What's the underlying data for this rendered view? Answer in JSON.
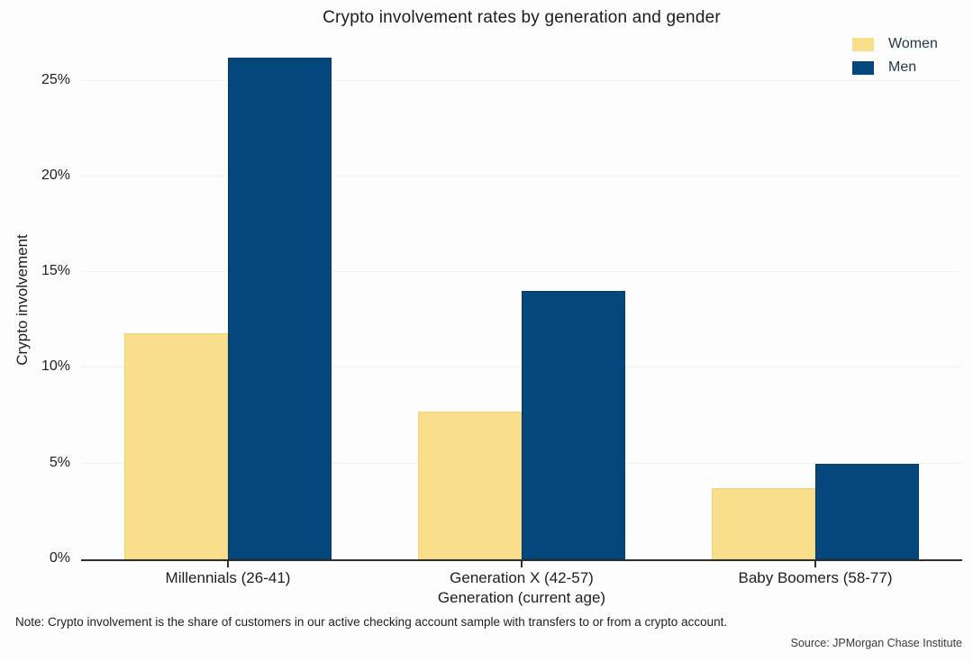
{
  "chart_data": {
    "type": "bar",
    "title": "Crypto involvement rates by generation and gender",
    "categories": [
      "Millennials (26-41)",
      "Generation X (42-57)",
      "Baby Boomers (58-77)"
    ],
    "series": [
      {
        "name": "Women",
        "values": [
          11.8,
          7.7,
          3.7
        ],
        "color": "#F9DF8B",
        "edge_color": "#eed27c"
      },
      {
        "name": "Men",
        "values": [
          26.2,
          14.0,
          5.0
        ],
        "color": "#03477D",
        "edge_color": "#0a3a63"
      }
    ],
    "xlabel": "Generation (current age)",
    "ylabel": "Crypto involvement",
    "yticks": [
      0,
      5,
      10,
      15,
      20,
      25
    ],
    "ytick_suffix": "%",
    "ylim": [
      0,
      27.1
    ],
    "grid": true,
    "legend_position": "top-right",
    "background_color": "#fdfdfd",
    "axis_line_color": "#2e2e2e"
  },
  "footer": {
    "note": "Note: Crypto involvement is the share of customers in our active checking account sample with transfers to or from a crypto account.",
    "source": "Source: JPMorgan Chase Institute"
  }
}
